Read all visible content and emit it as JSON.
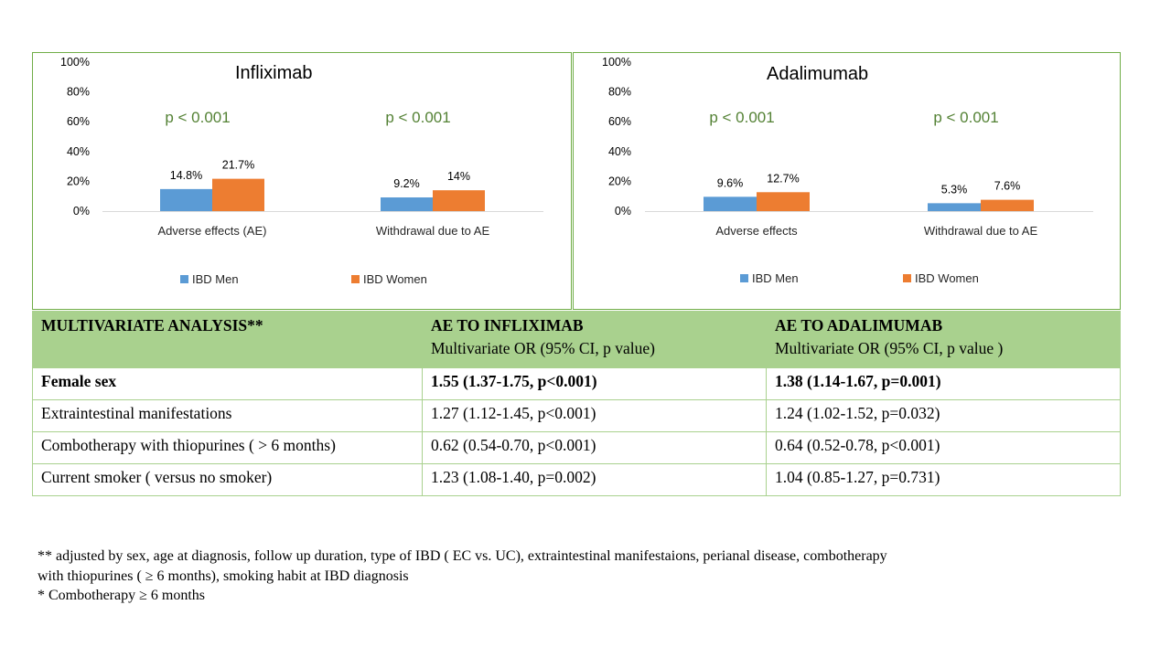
{
  "chart_data": [
    {
      "type": "bar",
      "title": "Infliximab",
      "categories": [
        "Adverse effects (AE)",
        "Withdrawal due to AE"
      ],
      "series": [
        {
          "name": "IBD Men",
          "values": [
            14.8,
            9.2
          ],
          "labels": [
            "14.8%",
            "9.2%"
          ]
        },
        {
          "name": "IBD Women",
          "values": [
            21.7,
            14
          ],
          "labels": [
            "21.7%",
            "14%"
          ]
        }
      ],
      "annotations": [
        "p < 0.001",
        "p < 0.001"
      ],
      "yticks": [
        "0%",
        "20%",
        "40%",
        "60%",
        "80%",
        "100%"
      ],
      "ylim": [
        0,
        100
      ],
      "legend": "bottom",
      "colors": {
        "IBD Men": "#5b9bd5",
        "IBD Women": "#ed7d31"
      }
    },
    {
      "type": "bar",
      "title": "Adalimumab",
      "categories": [
        "Adverse effects",
        "Withdrawal due to AE"
      ],
      "series": [
        {
          "name": "IBD Men",
          "values": [
            9.6,
            5.3
          ],
          "labels": [
            "9.6%",
            "5.3%"
          ]
        },
        {
          "name": "IBD Women",
          "values": [
            12.7,
            7.6
          ],
          "labels": [
            "12.7%",
            "7.6%"
          ]
        }
      ],
      "annotations": [
        "p < 0.001",
        "p < 0.001"
      ],
      "yticks": [
        "0%",
        "20%",
        "40%",
        "60%",
        "80%",
        "100%"
      ],
      "ylim": [
        0,
        100
      ],
      "legend": "bottom",
      "colors": {
        "IBD Men": "#5b9bd5",
        "IBD Women": "#ed7d31"
      }
    }
  ],
  "table": {
    "header": {
      "col1": "MULTIVARIATE ANALYSIS**",
      "col2_title": "AE TO INFLIXIMAB",
      "col2_sub": "Multivariate OR (95% CI,  p value)",
      "col3_title": "AE TO ADALIMUMAB",
      "col3_sub": "Multivariate OR (95% CI,  p value )"
    },
    "rows": [
      {
        "label": "Female sex",
        "infliximab": "1.55 (1.37-1.75, p<0.001)",
        "adalimumab": "1.38 (1.14-1.67, p=0.001)"
      },
      {
        "label": "Extraintestinal manifestations",
        "infliximab": "1.27 (1.12-1.45, p<0.001)",
        "adalimumab": "1.24 (1.02-1.52, p=0.032)"
      },
      {
        "label": "Combotherapy with thiopurines ( > 6 months)",
        "infliximab": "0.62 (0.54-0.70, p<0.001)",
        "adalimumab": "0.64 (0.52-0.78, p<0.001)"
      },
      {
        "label": "Current smoker  ( versus no smoker)",
        "infliximab": "1.23 (1.08-1.40, p=0.002)",
        "adalimumab": "1.04 (0.85-1.27, p=0.731)"
      }
    ]
  },
  "footnotes": {
    "line1": "** adjusted by sex, age at diagnosis, follow up duration, type of IBD ( EC vs. UC), extraintestinal manifestaions, perianal disease, combotherapy",
    "line2": "with thiopurines ( ≥ 6 months), smoking habit at IBD diagnosis",
    "line3": "* Combotherapy ≥ 6 months"
  }
}
